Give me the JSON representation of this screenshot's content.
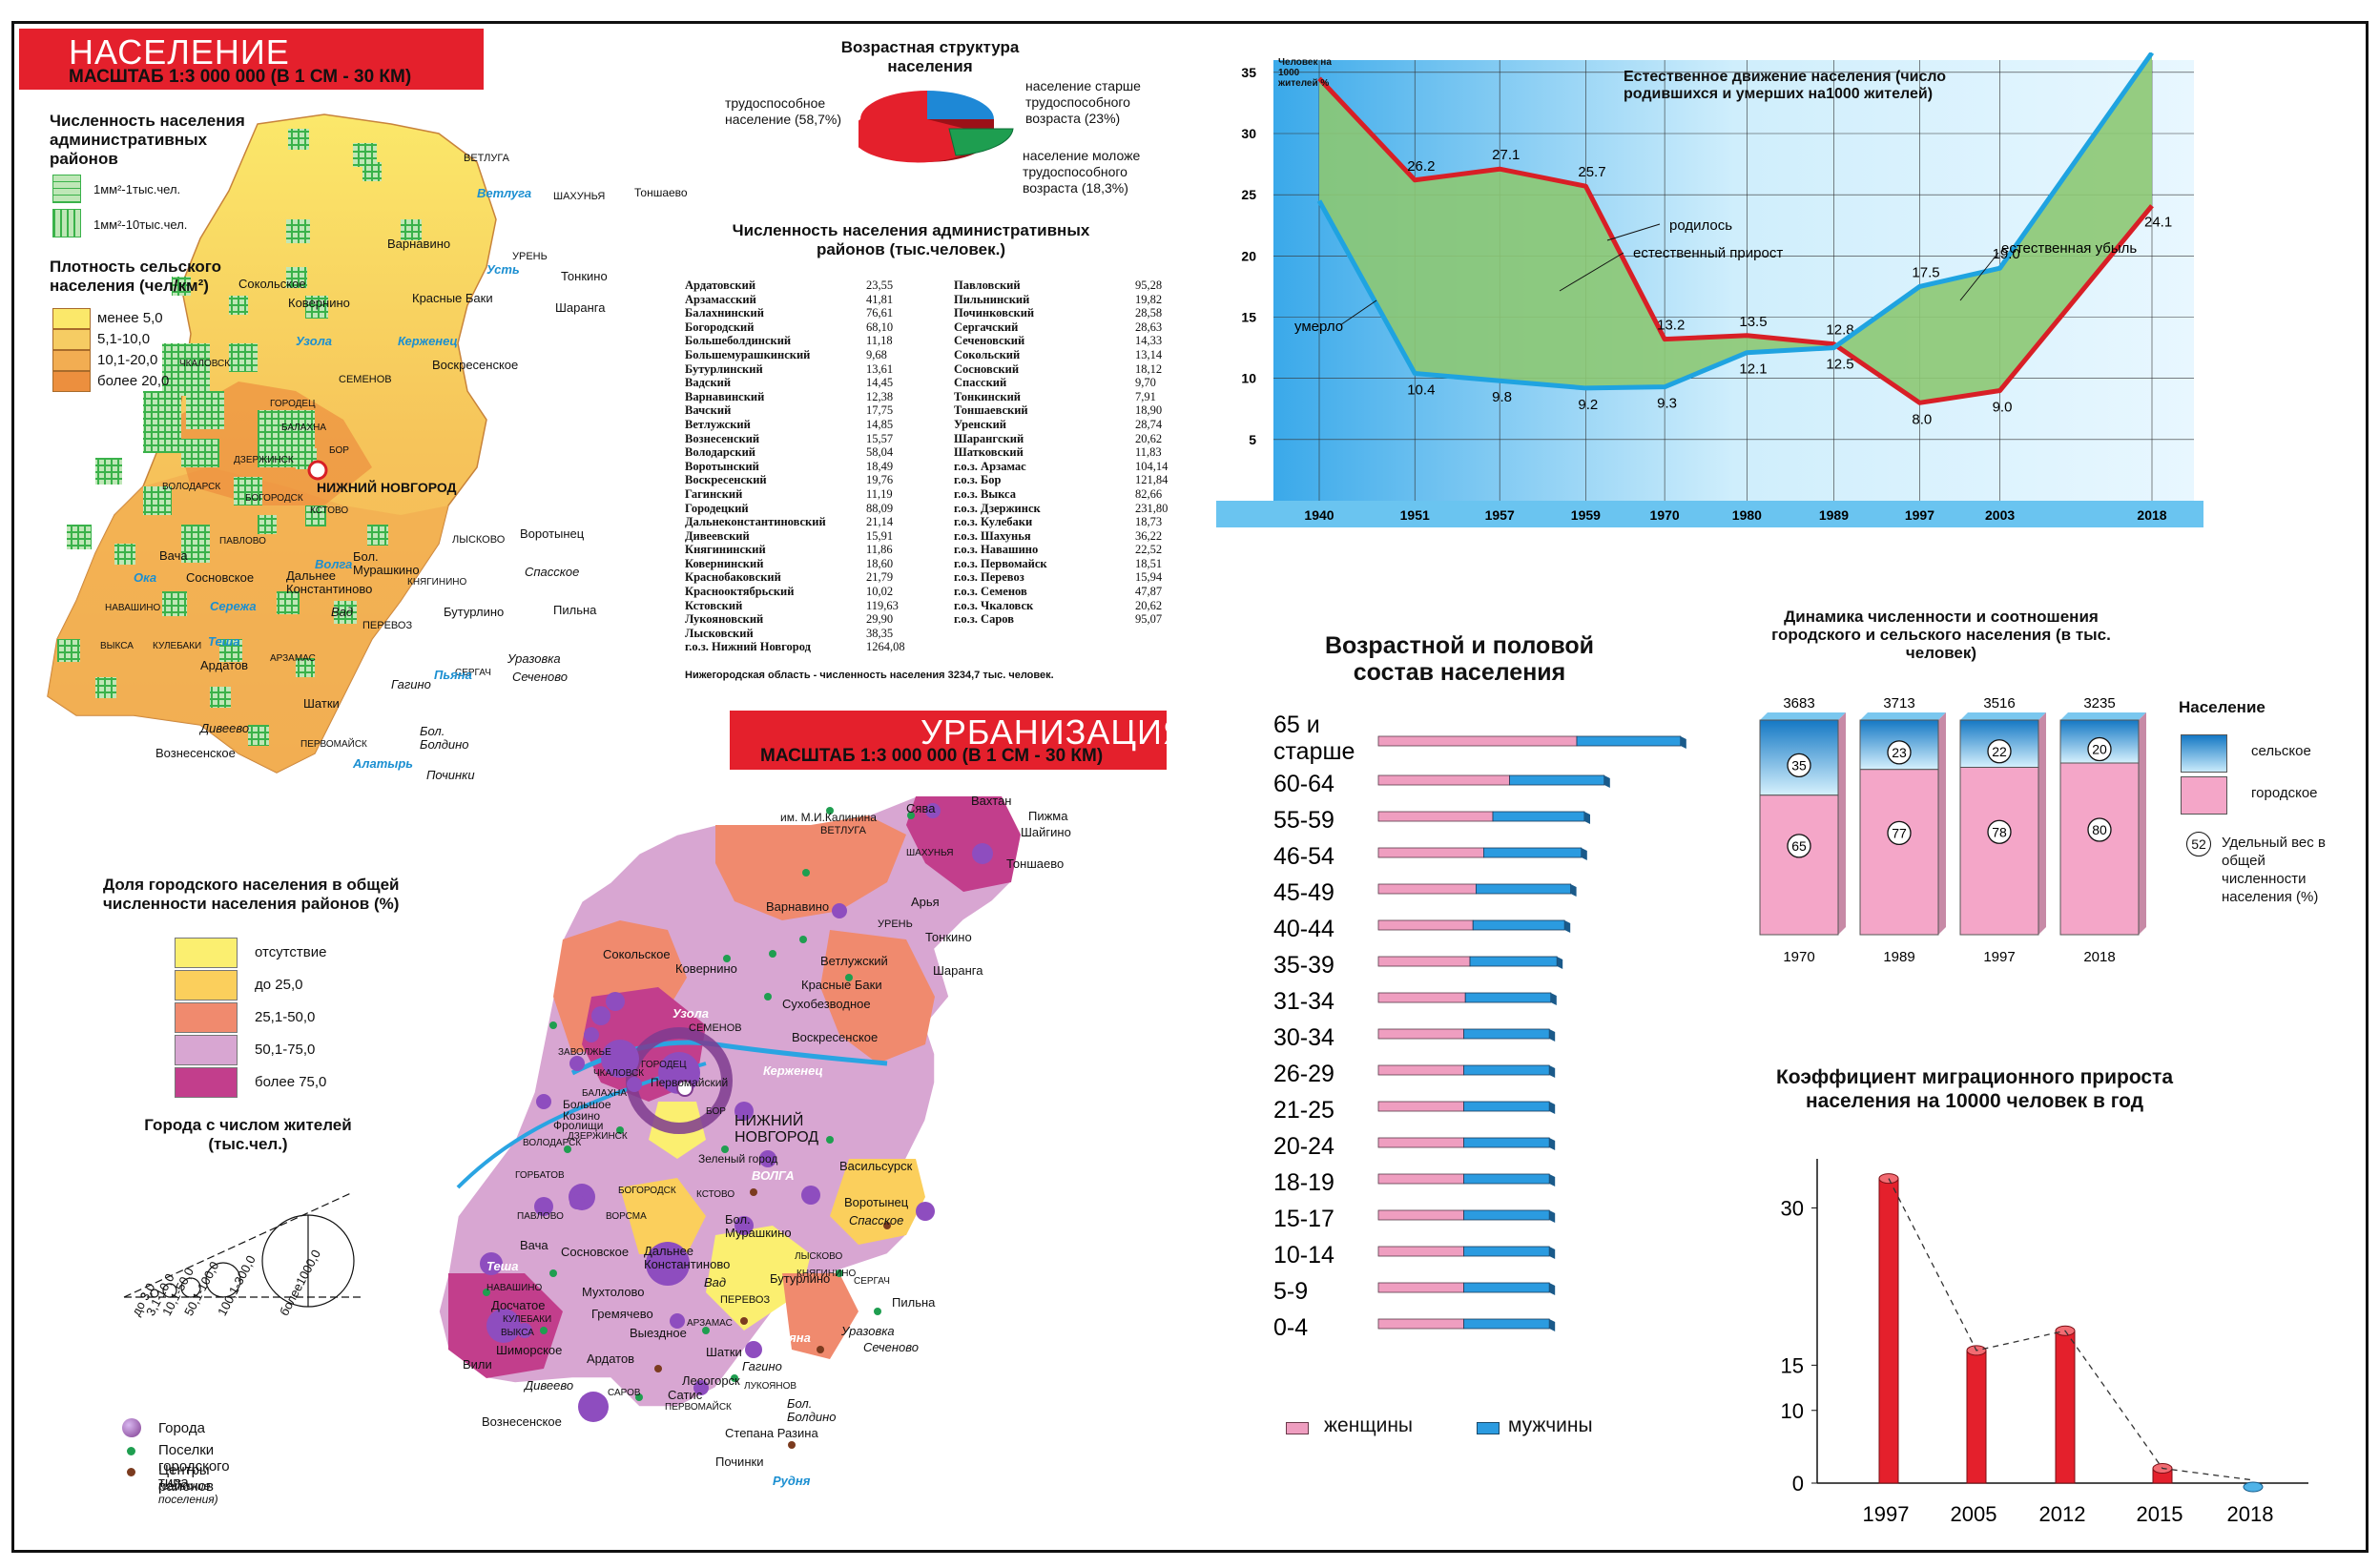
{
  "population_section": {
    "title": "НАСЕЛЕНИЕ",
    "scale": "МАСШТАБ 1:3 000 000 (В 1 СМ - 30  КМ)",
    "districts_legend_title": "Численность населения административных районов",
    "districts_legend": [
      "1мм²-1тыс.чел.",
      "1мм²-10тыс.чел."
    ],
    "density_title": "Плотность сельского населения (чел/км²)",
    "density_legend": [
      {
        "label": "менее 5,0",
        "color": "#fbe86a"
      },
      {
        "label": "5,1-10,0",
        "color": "#f6cc63"
      },
      {
        "label": "10,1-20,0",
        "color": "#f2ad52"
      },
      {
        "label": "более 20,0",
        "color": "#ec8f3e"
      }
    ],
    "map_labels": [
      "ВЕТЛУГА",
      "Ветлуга",
      "ШАХУНЬЯ",
      "Тоншаево",
      "Варнавино",
      "УРЕНЬ",
      "Тонкино",
      "Шаранга",
      "Красные Баки",
      "Сокольское",
      "Ковернино",
      "Воскресенское",
      "ЧКАЛОВСК",
      "СЕМЕНОВ",
      "ГОРОДЕЦ",
      "БАЛАХНА",
      "ДЗЕРЖИНСК",
      "БОР",
      "НИЖНИЙ НОВГОРОД",
      "ВОЛОДАРСК",
      "БОГОРОДСК",
      "КСТОВО",
      "ПАВЛОВО",
      "ЛЫСКОВО",
      "Воротынец",
      "Вача",
      "Сосновское",
      "Дальнее Константиново",
      "Бол. Мурашкино",
      "КНЯГИНИНО",
      "Спасское",
      "НАВАШИНО",
      "Вад",
      "ПЕРЕВОЗ",
      "Бутурлино",
      "Пильна",
      "ВЫКСА",
      "КУЛЕБАКИ",
      "Ардатов",
      "АРЗАМАС",
      "СЕРГАЧ",
      "Уразовка",
      "Сеченово",
      "Гагино",
      "Шатки",
      "Дивеево",
      "ПЕРВОМАЙСК",
      "Бол. Болдино",
      "Вознесенское",
      "Починки",
      "Ока",
      "Волга",
      "Сережа",
      "Теша",
      "Пьяна",
      "Алатырь",
      "Ветлуга",
      "Керженец",
      "Узола",
      "Усть"
    ]
  },
  "age_structure": {
    "title": "Возрастная структура населения",
    "slices": [
      {
        "label": "трудоспособное население (58,7%)",
        "value": 58.7,
        "color": "#e4202c"
      },
      {
        "label": "население старше трудоспособного возраста (23%)",
        "value": 23,
        "color": "#1e88d6"
      },
      {
        "label": "население моложе трудоспособного возраста (18,3%)",
        "value": 18.3,
        "color": "#1e9e50"
      }
    ]
  },
  "district_table": {
    "title": "Численность населения административных районов (тыс.человек.)",
    "left": [
      [
        "Ардатовский",
        "23,55"
      ],
      [
        "Арзамасский",
        "41,81"
      ],
      [
        "Балахнинский",
        "76,61"
      ],
      [
        "Богородский",
        "68,10"
      ],
      [
        "Большеболдинский",
        "11,18"
      ],
      [
        "Большемурашкинский",
        "9,68"
      ],
      [
        "Бутурлинский",
        "13,61"
      ],
      [
        "Вадский",
        "14,45"
      ],
      [
        "Варнавинский",
        "12,38"
      ],
      [
        "Вачский",
        "17,75"
      ],
      [
        "Ветлужский",
        "14,85"
      ],
      [
        "Вознесенский",
        "15,57"
      ],
      [
        "Володарский",
        "58,04"
      ],
      [
        "Воротынский",
        "18,49"
      ],
      [
        "Воскресенский",
        "19,76"
      ],
      [
        "Гагинский",
        "11,19"
      ],
      [
        "Городецкий",
        "88,09"
      ],
      [
        "Дальнеконстантиновский",
        "21,14"
      ],
      [
        "Дивеевский",
        "15,91"
      ],
      [
        "Княгининский",
        "11,86"
      ],
      [
        "Ковернинский",
        "18,60"
      ],
      [
        "Краснобаковский",
        "21,79"
      ],
      [
        "Краснооктябрьский",
        "10,02"
      ],
      [
        "Кстовский",
        "119,63"
      ],
      [
        "Лукояновский",
        "29,90"
      ],
      [
        "Лысковский",
        "38,35"
      ],
      [
        "г.о.з. Нижний Новгород",
        "1264,08"
      ]
    ],
    "right": [
      [
        "Павловский",
        "95,28"
      ],
      [
        "Пильнинский",
        "19,82"
      ],
      [
        "Починковский",
        "28,58"
      ],
      [
        "Сергачский",
        "28,63"
      ],
      [
        "Сеченовский",
        "14,33"
      ],
      [
        "Сокольский",
        "13,14"
      ],
      [
        "Сосновский",
        "18,12"
      ],
      [
        "Спасский",
        "9,70"
      ],
      [
        "Тонкинский",
        "7,91"
      ],
      [
        "Тоншаевский",
        "18,90"
      ],
      [
        "Уренский",
        "28,74"
      ],
      [
        "Шарангский",
        "20,62"
      ],
      [
        "Шатковский",
        "11,83"
      ],
      [
        "г.о.з. Арзамас",
        "104,14"
      ],
      [
        "г.о.з. Бор",
        "121,84"
      ],
      [
        "г.о.з. Выкса",
        "82,66"
      ],
      [
        "г.о.з. Дзержинск",
        "231,80"
      ],
      [
        "г.о.з. Кулебаки",
        "18,73"
      ],
      [
        "г.о.з. Шахунья",
        "36,22"
      ],
      [
        "г.о.з. Навашино",
        "22,52"
      ],
      [
        "г.о.з. Первомайск",
        "18,51"
      ],
      [
        "г.о.з. Перевоз",
        "15,94"
      ],
      [
        "г.о.з. Семенов",
        "47,87"
      ],
      [
        "г.о.з. Чкаловск",
        "20,62"
      ],
      [
        "г.о.з. Саров",
        "95,07"
      ]
    ],
    "footer": "Нижегородская область - численность населения 3234,7 тыс. человек."
  },
  "urbanization": {
    "title": "УРБАНИЗАЦИЯ",
    "scale": "МАСШТАБ 1:3 000 000 (В 1 СМ - 30  КМ)",
    "share_title": "Доля городского населения в общей численности населения районов (%)",
    "share_legend": [
      {
        "label": "отсутствие",
        "color": "#fbef70"
      },
      {
        "label": "до 25,0",
        "color": "#fbcf5c"
      },
      {
        "label": "25,1-50,0",
        "color": "#f08a6e"
      },
      {
        "label": "50,1-75,0",
        "color": "#d8a6d2"
      },
      {
        "label": "более 75,0",
        "color": "#c23e8c"
      }
    ],
    "cities_title": "Города с числом жителей (тыс.чел.)",
    "cities_scale": [
      "до 3,0",
      "3,1-10,0",
      "10,1-50,0",
      "50,1-100,0",
      "100,1-300,0",
      "более1000,0"
    ],
    "point_legend": [
      "Города",
      "Поселки городского типа",
      "Центры районов"
    ],
    "point_legend_note": "(сельские поселения)",
    "map_labels": [
      "Вахтан",
      "Пижма",
      "Шайгино",
      "им. М.И.Калинина",
      "Сява",
      "ВЕТЛУГА",
      "ШАХУНЬЯ",
      "Тоншаево",
      "Варнавино",
      "Арья",
      "УРЕНЬ",
      "Тонкино",
      "Шаранга",
      "Сокольское",
      "Ковернино",
      "Ветлужский",
      "Красные Баки",
      "Сухобезводное",
      "СЕМЕНОВ",
      "Воскресенское",
      "ЗАВОЛЖЬЕ",
      "ЧКАЛОВСК",
      "ГОРОДЕЦ",
      "Первомайский",
      "Большое Козино",
      "БАЛАХНА",
      "Фролищи",
      "ДЗЕРЖИНСК",
      "НИЖНИЙ НОВГОРОД",
      "БОР",
      "ВОЛОДАРСК",
      "Зеленый город",
      "ВОЛГА",
      "Васильсурск",
      "ГОРБАТОВ",
      "БОГОРОДСК",
      "КСТОВО",
      "Воротынец",
      "ПАВЛОВО",
      "ВОРСМА",
      "Бол. Мурашкино",
      "Спасское",
      "Вача",
      "Сосновское",
      "Дальнее Константиново",
      "ЛЫСКОВО",
      "КНЯГИНИНО",
      "Теша",
      "Мухтолово",
      "НАВАШИНО",
      "Досчатое",
      "Вад",
      "ПЕРЕВОЗ",
      "Бутурлино",
      "СЕРГАЧ",
      "Пильна",
      "Гремячево",
      "КУЛЕБАКИ",
      "ВЫКСА",
      "Выездное",
      "АРЗАМАС",
      "Уразовка",
      "Сеченово",
      "Шиморское",
      "Ардатов",
      "Шатки",
      "Вили",
      "Гагино",
      "Лесогорск",
      "Дивеево",
      "САРОВ",
      "ЛУКОЯНОВ",
      "Сатис",
      "ПЕРВОМАЙСК",
      "Бол. Болдино",
      "Вознесенское",
      "Степана Разина",
      "Починки",
      "Пьяна",
      "Алатырь",
      "Рудня",
      "Узола",
      "Керженец"
    ]
  },
  "natural_movement": {
    "ylabel": "Человек на 1000 жителей %",
    "title": "Естественное движение населения (число родившихся и умерших на1000 жителей)",
    "annotations": [
      "родилось",
      "естественный прирост",
      "естественная убыль",
      "умерло"
    ],
    "chart_data": {
      "type": "line",
      "x": [
        "1940",
        "1951",
        "1957",
        "1959",
        "1970",
        "1980",
        "1989",
        "1997",
        "2003",
        "2018"
      ],
      "ylim": [
        0,
        36
      ],
      "yticks": [
        "5",
        "10",
        "15",
        "20",
        "25",
        "30",
        "35"
      ],
      "series": [
        {
          "name": "родилось",
          "values": [
            34.5,
            26.2,
            27.1,
            25.7,
            13.2,
            13.5,
            12.8,
            8.0,
            9.0,
            24.1
          ],
          "labels": [
            "",
            "26.2",
            "27.1",
            "25.7",
            "13.2",
            "13.5",
            "12.8",
            "8.0",
            "9.0",
            "24.1"
          ],
          "color": "#d81f26"
        },
        {
          "name": "умерло",
          "values": [
            24.5,
            10.4,
            9.8,
            9.2,
            9.3,
            12.1,
            12.5,
            17.5,
            19.0,
            36.6
          ],
          "labels": [
            "",
            "10.4",
            "9.8",
            "9.2",
            "9.3",
            "12.1",
            "12.5",
            "17.5",
            "19.0",
            "36.6"
          ],
          "color": "#1fa3e0"
        }
      ]
    }
  },
  "age_sex": {
    "title": "Возрастной и половой состав населения",
    "legend": [
      "женщины",
      "мужчины"
    ],
    "chart_data": {
      "type": "bar",
      "categories": [
        "65 и старше",
        "60-64",
        "55-59",
        "46-54",
        "45-49",
        "40-44",
        "35-39",
        "31-34",
        "30-34",
        "26-29",
        "21-25",
        "20-24",
        "18-19",
        "15-17",
        "10-14",
        "5-9",
        "0-4"
      ],
      "series": [
        {
          "name": "женщины",
          "values": [
            130,
            86,
            75,
            69,
            64,
            62,
            60,
            57,
            56,
            56,
            56,
            56,
            56,
            56,
            56,
            56,
            56
          ],
          "color": "#ef9ec0"
        },
        {
          "name": "мужчины",
          "values": [
            68,
            62,
            60,
            64,
            62,
            60,
            57,
            56,
            56,
            56,
            56,
            56,
            56,
            56,
            56,
            56,
            56
          ],
          "color": "#2b9be0"
        }
      ]
    }
  },
  "urban_rural": {
    "title": "Динамика численности и соотношения городского и сельского населения (в тыс. человек)",
    "legend_title": "Население",
    "legend": [
      "сельское",
      "городское"
    ],
    "legend_note": "Удельный вес в общей численности населения (%)",
    "legend_note_example": "52",
    "chart_data": {
      "type": "bar",
      "categories": [
        "1970",
        "1989",
        "1997",
        "2018"
      ],
      "totals": [
        "3683",
        "3713",
        "3516",
        "3235"
      ],
      "series": [
        {
          "name": "сельское",
          "values": [
            35,
            23,
            22,
            20
          ],
          "color": "#2aa4e2"
        },
        {
          "name": "городское",
          "values": [
            65,
            77,
            78,
            80
          ],
          "color": "#f4a6c8"
        }
      ]
    }
  },
  "migration": {
    "title": "Коэффициент миграционного прироста населения на 10000 человек в год",
    "chart_data": {
      "type": "bar",
      "categories": [
        "1997",
        "2005",
        "2012",
        "2015",
        "2018"
      ],
      "values": [
        31,
        13.5,
        15.5,
        1.5,
        -0.5
      ],
      "yticks": [
        "0",
        "10",
        "15",
        "30"
      ],
      "ylim": [
        0,
        33
      ]
    }
  }
}
